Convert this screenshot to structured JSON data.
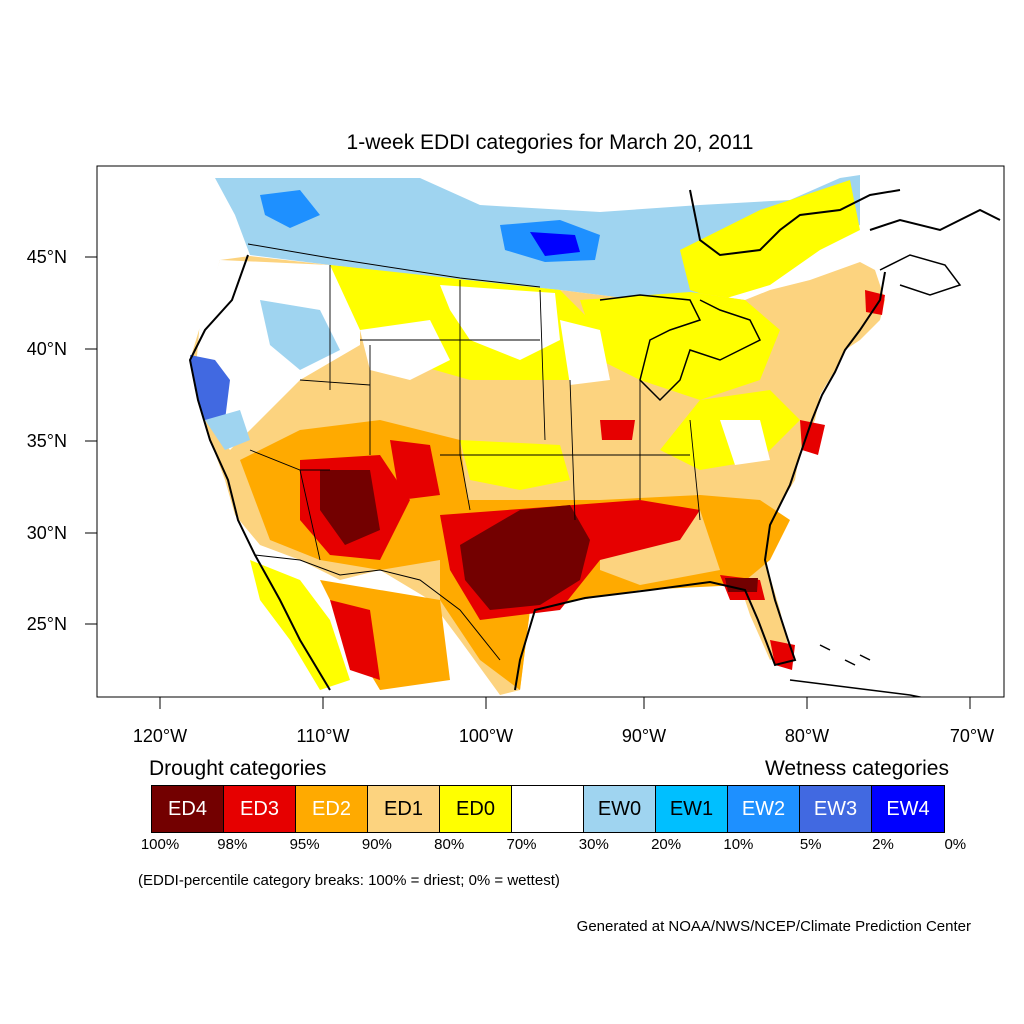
{
  "title": "1-week EDDI categories for March 20, 2011",
  "lat_labels": [
    "45°N",
    "40°N",
    "35°N",
    "30°N",
    "25°N"
  ],
  "lon_labels": [
    "120°W",
    "110°W",
    "100°W",
    "90°W",
    "80°W",
    "70°W"
  ],
  "legend": {
    "drought_caption": "Drought categories",
    "wetness_caption": "Wetness categories",
    "categories": [
      {
        "label": "ED4",
        "color": "#730000",
        "text_color": "#ffffff"
      },
      {
        "label": "ED3",
        "color": "#e60000",
        "text_color": "#ffffff"
      },
      {
        "label": "ED2",
        "color": "#ffaa00",
        "text_color": "#ffffff"
      },
      {
        "label": "ED1",
        "color": "#fcd37f",
        "text_color": "#000000"
      },
      {
        "label": "ED0",
        "color": "#ffff00",
        "text_color": "#000000"
      },
      {
        "label": "",
        "color": "#ffffff",
        "text_color": "#000000"
      },
      {
        "label": "EW0",
        "color": "#9fd4f0",
        "text_color": "#000000"
      },
      {
        "label": "EW1",
        "color": "#00bfff",
        "text_color": "#000000"
      },
      {
        "label": "EW2",
        "color": "#1e90ff",
        "text_color": "#ffffff"
      },
      {
        "label": "EW3",
        "color": "#4169e1",
        "text_color": "#ffffff"
      },
      {
        "label": "EW4",
        "color": "#0000ff",
        "text_color": "#ffffff"
      }
    ],
    "breaks": [
      "100%",
      "98%",
      "95%",
      "90%",
      "80%",
      "70%",
      "30%",
      "20%",
      "10%",
      "5%",
      "2%",
      "0%"
    ]
  },
  "note": "(EDDI-percentile category breaks: 100% = driest; 0% = wettest)",
  "credit": "Generated at NOAA/NWS/NCEP/Climate Prediction Center"
}
